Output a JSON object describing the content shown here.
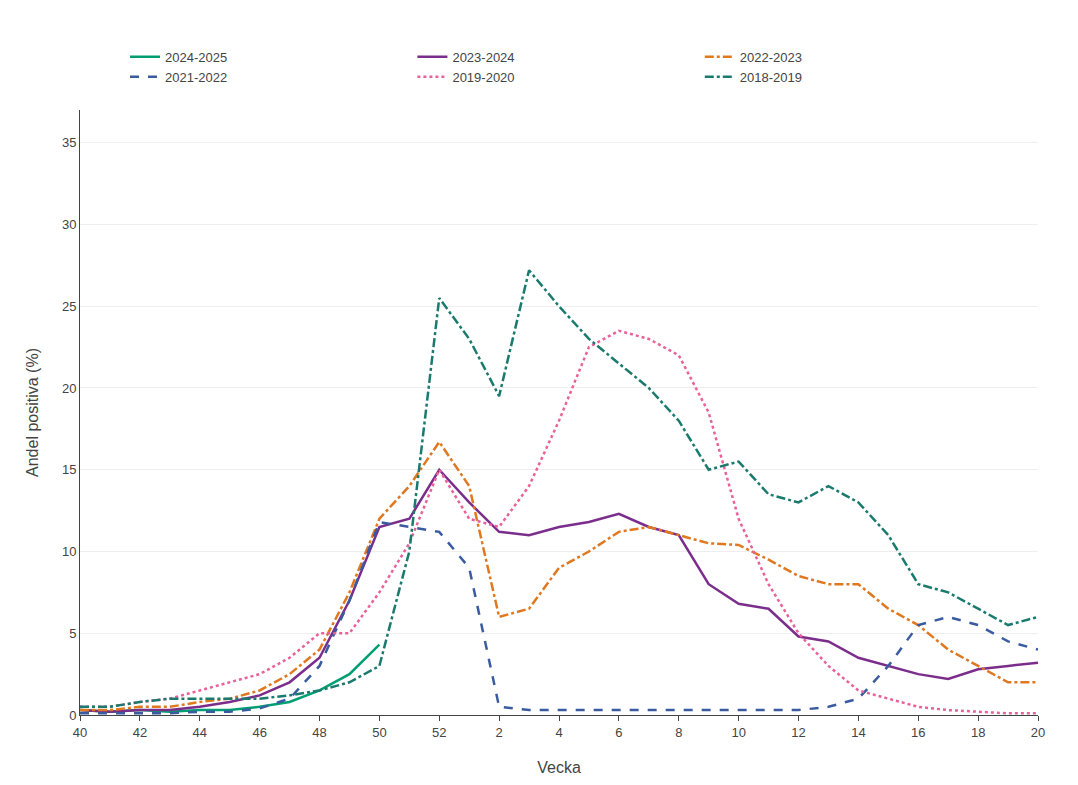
{
  "chart_data": {
    "type": "line",
    "xlabel": "Vecka",
    "ylabel": "Andel positiva (%)",
    "categories": [
      "40",
      null,
      "42",
      null,
      "44",
      null,
      "46",
      null,
      "48",
      null,
      "50",
      null,
      "52",
      null,
      "2",
      null,
      "4",
      null,
      "6",
      null,
      "8",
      null,
      "10",
      null,
      "12",
      null,
      "14",
      null,
      "16",
      null,
      "18",
      null,
      "20"
    ],
    "ylim": [
      0,
      37
    ],
    "yticks": [
      0,
      5,
      10,
      15,
      20,
      25,
      30,
      35
    ],
    "grid": true,
    "legend": "top",
    "series": [
      {
        "name": "2024-2025",
        "color": "#009E73",
        "line_style": "solid",
        "values": [
          0.3,
          0.2,
          0.3,
          0.2,
          0.3,
          0.3,
          0.5,
          0.8,
          1.5,
          2.5,
          4.3,
          null,
          null,
          null,
          null,
          null,
          null,
          null,
          null,
          null,
          null,
          null,
          null,
          null,
          null,
          null,
          null,
          null,
          null,
          null,
          null,
          null,
          null
        ]
      },
      {
        "name": "2023-2024",
        "color": "#7B2D8B",
        "line_style": "solid",
        "values": [
          0.3,
          0.2,
          0.3,
          0.3,
          0.5,
          0.8,
          1.2,
          2.0,
          3.5,
          7.0,
          11.5,
          12.0,
          15.0,
          13.0,
          11.2,
          11.0,
          11.5,
          11.8,
          12.3,
          11.5,
          11.0,
          8.0,
          6.8,
          6.5,
          4.8,
          4.5,
          3.5,
          3.0,
          2.5,
          2.2,
          2.8,
          3.0,
          3.2
        ]
      },
      {
        "name": "2022-2023",
        "color": "#E07820",
        "line_style": "dashdot",
        "values": [
          0.3,
          0.3,
          0.5,
          0.5,
          0.8,
          1.0,
          1.5,
          2.5,
          4.0,
          7.5,
          12.0,
          14.0,
          16.7,
          14.0,
          6.0,
          6.5,
          9.0,
          10.0,
          11.2,
          11.5,
          11.0,
          10.5,
          10.4,
          9.5,
          8.5,
          8.0,
          8.0,
          6.5,
          5.5,
          4.0,
          3.0,
          2.0,
          2.0
        ]
      },
      {
        "name": "2021-2022",
        "color": "#3A5BA0",
        "line_style": "dashed",
        "values": [
          0.1,
          0.1,
          0.1,
          0.1,
          0.2,
          0.2,
          0.4,
          1.0,
          3.0,
          7.0,
          11.8,
          11.5,
          11.2,
          9.0,
          0.5,
          0.3,
          0.3,
          0.3,
          0.3,
          0.3,
          0.3,
          0.3,
          0.3,
          0.3,
          0.3,
          0.5,
          1.0,
          3.0,
          5.5,
          6.0,
          5.5,
          4.5,
          4.0
        ]
      },
      {
        "name": "2019-2020",
        "color": "#E8619A",
        "line_style": "dotted",
        "values": [
          0.5,
          0.5,
          0.8,
          1.0,
          1.5,
          2.0,
          2.5,
          3.5,
          5.0,
          5.0,
          7.5,
          10.5,
          15.0,
          12.0,
          11.5,
          14.0,
          18.0,
          22.5,
          23.5,
          23.0,
          22.0,
          18.5,
          12.0,
          8.0,
          5.0,
          3.0,
          1.5,
          1.0,
          0.5,
          0.3,
          0.2,
          0.1,
          0.1
        ]
      },
      {
        "name": "2018-2019",
        "color": "#1B7A6E",
        "line_style": "dashdot",
        "values": [
          0.5,
          0.5,
          0.8,
          1.0,
          1.0,
          1.0,
          1.0,
          1.2,
          1.5,
          2.0,
          3.0,
          10.0,
          25.5,
          23.0,
          19.5,
          27.2,
          25.0,
          23.0,
          21.5,
          20.0,
          18.0,
          15.0,
          15.5,
          13.5,
          13.0,
          14.0,
          13.0,
          11.0,
          8.0,
          7.5,
          6.5,
          5.5,
          6.0
        ]
      }
    ]
  }
}
